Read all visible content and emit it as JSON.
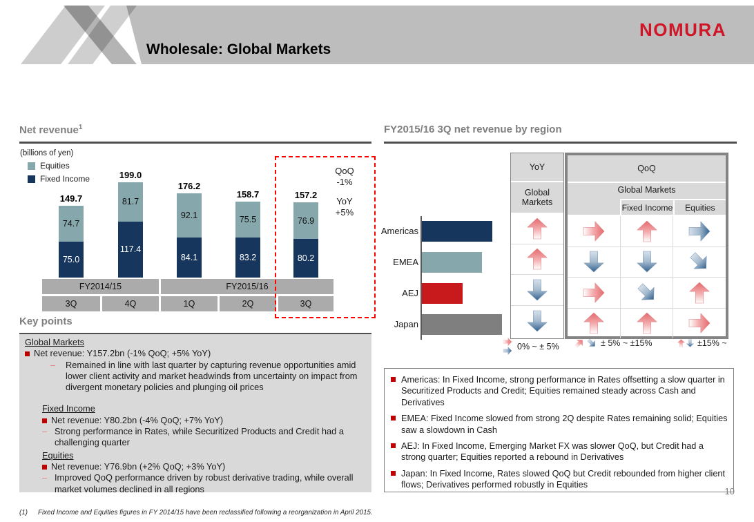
{
  "slide": {
    "title": "Wholesale: Global Markets",
    "logo": "NOMURA",
    "page_number": "10",
    "footnote_marker": "(1)",
    "footnote": "Fixed Income and Equities figures in FY 2014/15 have been reclassified following a reorganization in April 2015."
  },
  "colors": {
    "fixed_income_navy": "#17365d",
    "equities_teal": "#86a8ac",
    "aej_red": "#c8191c",
    "japan_gray": "#7f7f7f",
    "logo_red": "#d01626",
    "bullet_red": "#c00000",
    "highlight_dash_red": "#ff0000",
    "arrow_red_head": "#e4696d",
    "arrow_blue_head": "#31608f"
  },
  "net_revenue": {
    "section_title": "Net revenue",
    "title_superscript": "1",
    "unit_label": "(billions of yen)",
    "legend": [
      {
        "label": "Equities",
        "color": "#86a8ac"
      },
      {
        "label": "Fixed Income",
        "color": "#17365d"
      }
    ],
    "callout": {
      "qoq_label": "QoQ",
      "qoq_value": "-1%",
      "yoy_label": "YoY",
      "yoy_value": "+5%"
    },
    "axis": {
      "fiscal_years": [
        {
          "label": "FY2014/15",
          "quarter_span": [
            0,
            1
          ]
        },
        {
          "label": "FY2015/16",
          "quarter_span": [
            2,
            4
          ]
        }
      ],
      "quarters": [
        "3Q",
        "4Q",
        "1Q",
        "2Q",
        "3Q"
      ]
    }
  },
  "chart_data": [
    {
      "type": "bar",
      "stacked": true,
      "title": "Net revenue",
      "unit": "billions of yen",
      "categories": [
        "FY2014/15 3Q",
        "FY2014/15 4Q",
        "FY2015/16 1Q",
        "FY2015/16 2Q",
        "FY2015/16 3Q"
      ],
      "series": [
        {
          "name": "Fixed Income",
          "color": "#17365d",
          "values": [
            75.0,
            117.4,
            84.1,
            83.2,
            80.2
          ]
        },
        {
          "name": "Equities",
          "color": "#86a8ac",
          "values": [
            74.7,
            81.7,
            92.1,
            75.5,
            76.9
          ]
        }
      ],
      "totals": [
        149.7,
        199.0,
        176.2,
        158.7,
        157.2
      ],
      "annotations": {
        "QoQ": "-1%",
        "YoY": "+5%"
      },
      "highlight_category": "FY2015/16 3Q",
      "value_labels": "shown on segments and totals"
    },
    {
      "type": "bar",
      "orientation": "horizontal",
      "title": "FY2015/16 3Q net revenue by region",
      "categories": [
        "Americas",
        "EMEA",
        "AEJ",
        "Japan"
      ],
      "relative_lengths": [
        103,
        88,
        60,
        117
      ],
      "colors": [
        "#17365d",
        "#86a8ac",
        "#c8191c",
        "#7f7f7f"
      ],
      "axis_labels": "none shown"
    }
  ],
  "region_section": {
    "section_title": "FY2015/16 3Q net revenue by region",
    "table": {
      "yoy_header": "YoY",
      "yoy_subheader": "Global Markets",
      "qoq_header": "QoQ",
      "qoq_group_header": "Global Markets",
      "qoq_subheaders": [
        "Fixed Income",
        "Equities"
      ],
      "rows": [
        {
          "region": "Americas",
          "yoy": "red-up",
          "qoq_global_markets": "red-right",
          "qoq_fixed_income": "red-up",
          "qoq_equities": "blue-right"
        },
        {
          "region": "EMEA",
          "yoy": "red-up",
          "qoq_global_markets": "blue-down",
          "qoq_fixed_income": "blue-down",
          "qoq_equities": "blue-down-right"
        },
        {
          "region": "AEJ",
          "yoy": "blue-down",
          "qoq_global_markets": "red-right",
          "qoq_fixed_income": "blue-down-right",
          "qoq_equities": "red-up"
        },
        {
          "region": "Japan",
          "yoy": "blue-down",
          "qoq_global_markets": "red-up",
          "qoq_fixed_income": "red-up",
          "qoq_equities": "red-right"
        }
      ]
    },
    "arrow_legend": [
      {
        "icons": [
          "red-right",
          "blue-right"
        ],
        "stack": "column",
        "label": "0% ~ ± 5%"
      },
      {
        "icons": [
          "red-up-right",
          "blue-down-right"
        ],
        "stack": "row",
        "label": "± 5% ~ ±15%"
      },
      {
        "icons": [
          "red-up",
          "blue-down"
        ],
        "stack": "row",
        "label": "±15% ~"
      }
    ]
  },
  "key_points": {
    "section_title": "Key points",
    "groups": [
      {
        "heading": "Global Markets",
        "indent": 0,
        "bullets": [
          {
            "text": "Net revenue: Y157.2bn (-1% QoQ; +5% YoY)",
            "subs": [
              "Remained in line with last quarter by capturing revenue opportunities amid lower client activity and market headwinds from uncertainty on impact from divergent monetary policies and plunging oil prices"
            ]
          }
        ]
      },
      {
        "heading": "Fixed Income",
        "indent": 1,
        "bullets": [
          {
            "text": "Net revenue: Y80.2bn (-4% QoQ; +7% YoY)",
            "subs": [
              "Strong performance in Rates, while Securitized Products and Credit had a challenging quarter"
            ]
          }
        ]
      },
      {
        "heading": "Equities",
        "indent": 1,
        "bullets": [
          {
            "text": "Net revenue: Y76.9bn (+2% QoQ; +3% YoY)",
            "subs": [
              "Improved QoQ performance driven by robust derivative trading, while overall market volumes declined in all regions"
            ]
          }
        ]
      }
    ]
  },
  "region_comments": {
    "items": [
      "Americas: In Fixed Income, strong performance in Rates offsetting a slow quarter in Securitized Products and Credit; Equities remained steady across Cash and Derivatives",
      "EMEA: Fixed Income slowed from strong 2Q despite Rates remaining solid; Equities saw a slowdown in Cash",
      "AEJ: In Fixed Income, Emerging Market FX was slower QoQ, but Credit had a strong quarter; Equities reported a rebound in Derivatives",
      "Japan: In Fixed Income, Rates slowed QoQ but Credit rebounded from higher client flows; Derivatives performed robustly in Equities"
    ]
  }
}
